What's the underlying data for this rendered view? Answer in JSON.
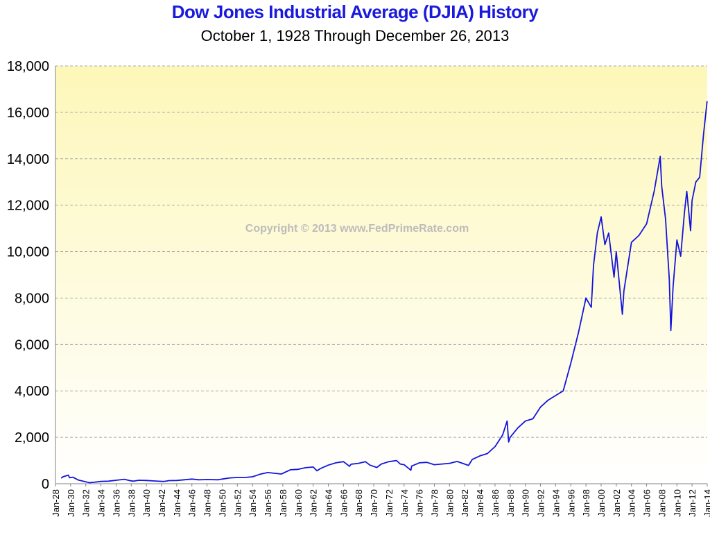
{
  "chart_data": {
    "type": "line",
    "title": "Dow Jones Industrial Average (DJIA) History",
    "subtitle": "October 1, 1928  Through  December 26, 2013",
    "watermark": "Copyright  ©  2013 www.FedPrimeRate.com",
    "xlabel": "",
    "ylabel": "",
    "ylim": [
      0,
      18000
    ],
    "xlim": [
      1928.0,
      2014.0
    ],
    "y_ticks": [
      "0",
      "2,000",
      "4,000",
      "6,000",
      "8,000",
      "10,000",
      "12,000",
      "14,000",
      "16,000",
      "18,000"
    ],
    "x_ticks": [
      "Jan-28",
      "Jan-30",
      "Jan-32",
      "Jan-34",
      "Jan-36",
      "Jan-38",
      "Jan-40",
      "Jan-42",
      "Jan-44",
      "Jan-46",
      "Jan-48",
      "Jan-50",
      "Jan-52",
      "Jan-54",
      "Jan-56",
      "Jan-58",
      "Jan-60",
      "Jan-62",
      "Jan-64",
      "Jan-66",
      "Jan-68",
      "Jan-70",
      "Jan-72",
      "Jan-74",
      "Jan-76",
      "Jan-78",
      "Jan-80",
      "Jan-82",
      "Jan-84",
      "Jan-86",
      "Jan-88",
      "Jan-90",
      "Jan-92",
      "Jan-94",
      "Jan-96",
      "Jan-98",
      "Jan-00",
      "Jan-02",
      "Jan-04",
      "Jan-06",
      "Jan-08",
      "Jan-10",
      "Jan-12",
      "Jan-14"
    ],
    "grid": true,
    "line_color": "#1414dc",
    "background_gradient": [
      "#fdf7b9",
      "#ffffff"
    ],
    "series": [
      {
        "name": "",
        "x": [
          1928.75,
          1929.0,
          1929.7,
          1929.85,
          1930.3,
          1931.0,
          1932.0,
          1932.5,
          1933.0,
          1934.0,
          1935.0,
          1936.0,
          1937.1,
          1937.9,
          1938.3,
          1939.0,
          1940.0,
          1941.0,
          1942.3,
          1943.0,
          1944.0,
          1945.0,
          1946.0,
          1946.9,
          1948.0,
          1949.5,
          1950.0,
          1951.0,
          1952.0,
          1953.0,
          1954.0,
          1955.0,
          1956.0,
          1957.8,
          1958.0,
          1959.0,
          1960.0,
          1961.0,
          1962.0,
          1962.5,
          1963.0,
          1964.0,
          1965.0,
          1966.0,
          1966.8,
          1967.0,
          1968.0,
          1968.9,
          1969.5,
          1970.4,
          1971.0,
          1972.0,
          1973.0,
          1973.5,
          1974.0,
          1974.9,
          1975.0,
          1976.0,
          1977.0,
          1978.0,
          1979.0,
          1980.0,
          1981.0,
          1982.5,
          1983.0,
          1984.0,
          1985.0,
          1986.0,
          1987.0,
          1987.6,
          1987.8,
          1988.0,
          1989.0,
          1990.0,
          1991.0,
          1992.0,
          1993.0,
          1994.0,
          1995.0,
          1996.0,
          1997.0,
          1998.0,
          1998.7,
          1999.0,
          1999.5,
          2000.0,
          2000.5,
          2001.0,
          2001.7,
          2002.0,
          2002.8,
          2003.0,
          2004.0,
          2005.0,
          2006.0,
          2007.0,
          2007.8,
          2008.0,
          2008.5,
          2009.0,
          2009.2,
          2009.5,
          2010.0,
          2010.5,
          2011.0,
          2011.3,
          2011.8,
          2012.0,
          2012.5,
          2013.0,
          2013.5,
          2013.98
        ],
        "y": [
          240,
          300,
          370,
          260,
          280,
          160,
          80,
          45,
          60,
          100,
          110,
          150,
          190,
          130,
          110,
          150,
          140,
          120,
          95,
          135,
          140,
          170,
          200,
          170,
          180,
          170,
          200,
          250,
          270,
          270,
          300,
          410,
          480,
          420,
          450,
          600,
          620,
          690,
          720,
          560,
          660,
          800,
          900,
          950,
          750,
          840,
          880,
          950,
          800,
          700,
          850,
          950,
          1000,
          850,
          820,
          580,
          760,
          900,
          920,
          820,
          850,
          880,
          960,
          790,
          1050,
          1200,
          1300,
          1600,
          2100,
          2700,
          1800,
          2000,
          2400,
          2700,
          2800,
          3300,
          3600,
          3800,
          4000,
          5200,
          6500,
          8000,
          7600,
          9400,
          10800,
          11500,
          10300,
          10800,
          8900,
          10000,
          7300,
          8300,
          10400,
          10700,
          11200,
          12600,
          14100,
          12800,
          11400,
          8800,
          6600,
          8500,
          10500,
          9800,
          11700,
          12600,
          10900,
          12200,
          13000,
          13200,
          15000,
          16480
        ]
      }
    ]
  }
}
